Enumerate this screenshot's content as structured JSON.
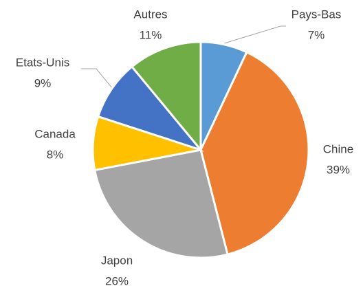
{
  "chart_data": {
    "type": "pie",
    "categories": [
      "Pays-Bas",
      "Chine",
      "Japon",
      "Canada",
      "Etats-Unis",
      "Autres"
    ],
    "values": [
      7,
      39,
      26,
      8,
      9,
      11
    ],
    "value_labels": [
      "7%",
      "39%",
      "26%",
      "8%",
      "9%",
      "11%"
    ],
    "colors": [
      "#5b9bd5",
      "#ed7d31",
      "#a5a5a5",
      "#ffc000",
      "#4472c4",
      "#70ad47"
    ]
  }
}
